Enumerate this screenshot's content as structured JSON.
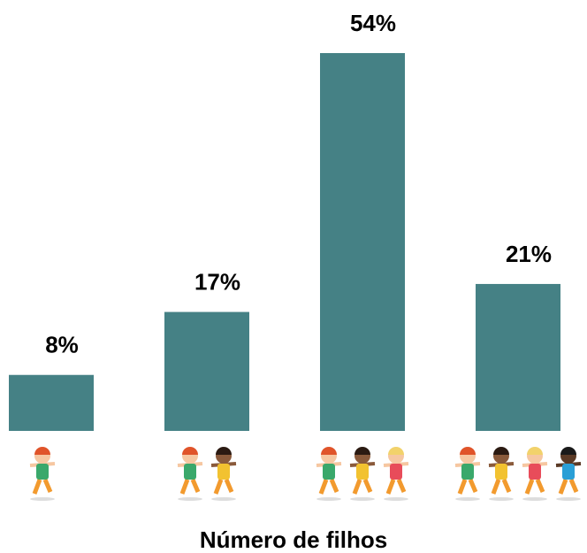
{
  "chart_data": {
    "type": "bar",
    "x_label": "Número de filhos",
    "categories": [
      null,
      null,
      null,
      null
    ],
    "values": [
      8,
      17,
      54,
      21
    ],
    "value_labels": [
      "8%",
      "17%",
      "54%",
      "21%"
    ],
    "color": "#458185"
  }
}
